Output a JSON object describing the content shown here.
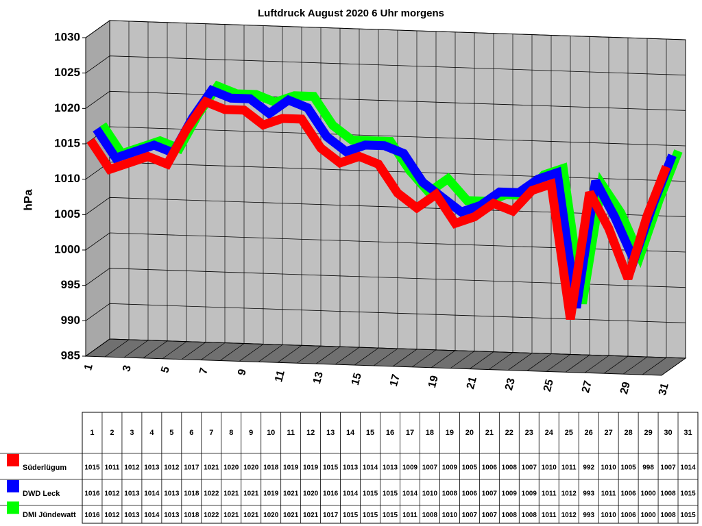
{
  "chart_data": {
    "type": "line3d",
    "title": "Luftdruck August 2020 6 Uhr morgens",
    "y_label": "hPa",
    "categories": [
      "1",
      "2",
      "3",
      "4",
      "5",
      "6",
      "7",
      "8",
      "9",
      "10",
      "11",
      "12",
      "13",
      "14",
      "15",
      "16",
      "17",
      "18",
      "19",
      "20",
      "21",
      "22",
      "23",
      "24",
      "25",
      "26",
      "27",
      "28",
      "29",
      "30",
      "31"
    ],
    "ylim": [
      985,
      1030
    ],
    "yticks": [
      985,
      990,
      995,
      1000,
      1005,
      1010,
      1015,
      1020,
      1025,
      1030
    ],
    "grid": true,
    "series": [
      {
        "name": "Süderlügum",
        "color": "#ff0000",
        "values": [
          1015,
          1011,
          1012,
          1013,
          1012,
          1017,
          1021,
          1020,
          1020,
          1018,
          1019,
          1019,
          1015,
          1013,
          1014,
          1013,
          1009,
          1007,
          1009,
          1005,
          1006,
          1008,
          1007,
          1010,
          1011,
          992,
          1010,
          1005,
          998,
          1007,
          1014
        ]
      },
      {
        "name": "DWD Leck",
        "color": "#0000ff",
        "values": [
          1016,
          1012,
          1013,
          1014,
          1013,
          1018,
          1022,
          1021,
          1021,
          1019,
          1021,
          1020,
          1016,
          1014,
          1015,
          1015,
          1014,
          1010,
          1008,
          1006,
          1007,
          1009,
          1009,
          1011,
          1012,
          993,
          1011,
          1006,
          1000,
          1008,
          1015
        ]
      },
      {
        "name": "DMI Jündewatt",
        "color": "#00ff00",
        "values": [
          1016,
          1012,
          1013,
          1014,
          1013,
          1018,
          1022,
          1021,
          1021,
          1020,
          1021,
          1021,
          1017,
          1015,
          1015,
          1015,
          1011,
          1008,
          1010,
          1007,
          1007,
          1008,
          1008,
          1011,
          1012,
          993,
          1010,
          1006,
          1000,
          1008,
          1015
        ]
      }
    ]
  }
}
